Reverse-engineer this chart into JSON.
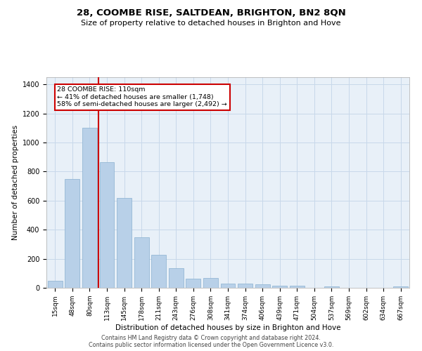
{
  "title": "28, COOMBE RISE, SALTDEAN, BRIGHTON, BN2 8QN",
  "subtitle": "Size of property relative to detached houses in Brighton and Hove",
  "xlabel": "Distribution of detached houses by size in Brighton and Hove",
  "ylabel": "Number of detached properties",
  "footer1": "Contains HM Land Registry data © Crown copyright and database right 2024.",
  "footer2": "Contains public sector information licensed under the Open Government Licence v3.0.",
  "annotation_line1": "28 COOMBE RISE: 110sqm",
  "annotation_line2": "← 41% of detached houses are smaller (1,748)",
  "annotation_line3": "58% of semi-detached houses are larger (2,492) →",
  "bar_labels": [
    "15sqm",
    "48sqm",
    "80sqm",
    "113sqm",
    "145sqm",
    "178sqm",
    "211sqm",
    "243sqm",
    "276sqm",
    "308sqm",
    "341sqm",
    "374sqm",
    "406sqm",
    "439sqm",
    "471sqm",
    "504sqm",
    "537sqm",
    "569sqm",
    "602sqm",
    "634sqm",
    "667sqm"
  ],
  "bar_values": [
    50,
    750,
    1100,
    865,
    620,
    350,
    225,
    135,
    65,
    70,
    30,
    30,
    22,
    15,
    15,
    0,
    12,
    0,
    0,
    0,
    12
  ],
  "bar_color": "#b8d0e8",
  "bar_edge_color": "#8ab0d0",
  "vline_color": "#cc0000",
  "vline_x": 2.5,
  "ylim": [
    0,
    1450
  ],
  "yticks": [
    0,
    200,
    400,
    600,
    800,
    1000,
    1200,
    1400
  ],
  "grid_color": "#c8d8ea",
  "bg_color": "#e8f0f8",
  "title_fontsize": 9.5,
  "subtitle_fontsize": 8.0,
  "axis_label_fontsize": 7.5,
  "ylabel_fontsize": 7.5,
  "tick_fontsize": 6.5,
  "annot_fontsize": 6.8,
  "footer_fontsize": 5.8
}
